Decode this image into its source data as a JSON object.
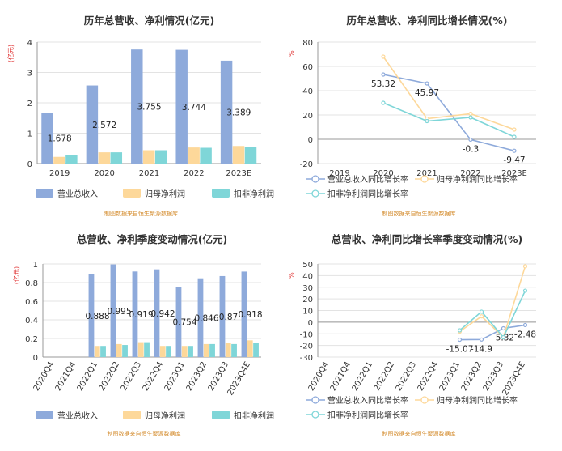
{
  "chart_data": [
    {
      "type": "bar",
      "title": "历年总营收、净利情况(亿元)",
      "unit_label": "(亿元)",
      "categories": [
        "2019",
        "2020",
        "2021",
        "2022",
        "2023E"
      ],
      "ylim": [
        0,
        4
      ],
      "yticks": [
        "0",
        "1",
        "2",
        "3",
        "4"
      ],
      "series": [
        {
          "name": "营业总收入",
          "color": "#8eaadb",
          "values": [
            1.678,
            2.572,
            3.755,
            3.744,
            3.389
          ]
        },
        {
          "name": "归母净利润",
          "color": "#fdd89a",
          "values": [
            0.22,
            0.37,
            0.44,
            0.53,
            0.58
          ]
        },
        {
          "name": "扣非净利润",
          "color": "#7fd6d8",
          "values": [
            0.28,
            0.37,
            0.44,
            0.52,
            0.55
          ]
        }
      ],
      "data_labels": [
        "1.678",
        "2.572",
        "3.755",
        "3.744",
        "3.389"
      ],
      "source": "制图数据来自恒生聚源数据库",
      "grid": true,
      "legend": "bottom"
    },
    {
      "type": "line",
      "title": "历年总营收、净利同比增长情况(%)",
      "unit_label": "%",
      "categories": [
        "2019",
        "2020",
        "2021",
        "2022",
        "2023E"
      ],
      "ylim": [
        -20,
        80
      ],
      "yticks": [
        "-20",
        "0",
        "20",
        "40",
        "60",
        "80"
      ],
      "series": [
        {
          "name": "营业总收入同比增长率",
          "color": "#8eaadb",
          "values": [
            null,
            53.32,
            45.97,
            -0.3,
            -9.47
          ]
        },
        {
          "name": "归母净利润同比增长率",
          "color": "#fdd89a",
          "values": [
            null,
            68.0,
            17.0,
            21.0,
            8.0
          ]
        },
        {
          "name": "扣非净利润同比增长率",
          "color": "#7fd6d8",
          "values": [
            null,
            30.0,
            15.0,
            18.0,
            2.0
          ]
        }
      ],
      "data_labels": [
        "",
        "53.32",
        "45.97",
        "-0.3",
        "-9.47"
      ],
      "source": "制图数据来自恒生聚源数据库",
      "grid": true,
      "legend": "bottom"
    },
    {
      "type": "bar",
      "title": "总营收、净利季度变动情况(亿元)",
      "unit_label": "(亿元)",
      "categories": [
        "2020Q4",
        "2021Q4",
        "2022Q1",
        "2022Q2",
        "2022Q3",
        "2022Q4",
        "2023Q1",
        "2023Q2",
        "2023Q3",
        "2023Q4E"
      ],
      "ylim": [
        0,
        1
      ],
      "yticks": [
        "0",
        "0.2",
        "0.4",
        "0.6",
        "0.8",
        "1"
      ],
      "series": [
        {
          "name": "营业总收入",
          "color": "#8eaadb",
          "values": [
            null,
            null,
            0.888,
            0.995,
            0.919,
            0.942,
            0.754,
            0.846,
            0.87,
            0.918
          ]
        },
        {
          "name": "归母净利润",
          "color": "#fdd89a",
          "values": [
            null,
            null,
            0.12,
            0.14,
            0.16,
            0.12,
            0.12,
            0.14,
            0.15,
            0.18
          ]
        },
        {
          "name": "扣非净利润",
          "color": "#7fd6d8",
          "values": [
            null,
            null,
            0.12,
            0.13,
            0.16,
            0.12,
            0.12,
            0.14,
            0.14,
            0.15
          ]
        }
      ],
      "data_labels": [
        "",
        "",
        "0.888",
        "0.995",
        "0.919",
        "0.942",
        "0.754",
        "0.846",
        "0.87",
        "0.918"
      ],
      "source": "制图数据来自恒生聚源数据库",
      "grid": true,
      "legend": "bottom"
    },
    {
      "type": "line",
      "title": "总营收、净利同比增长率季度变动情况(%)",
      "unit_label": "%",
      "categories": [
        "2020Q4",
        "2021Q4",
        "2022Q1",
        "2022Q2",
        "2022Q3",
        "2022Q4",
        "2023Q1",
        "2023Q2",
        "2023Q3",
        "2023Q4E"
      ],
      "ylim": [
        -30,
        50
      ],
      "yticks": [
        "-30",
        "-20",
        "-10",
        "0",
        "10",
        "20",
        "30",
        "40",
        "50"
      ],
      "series": [
        {
          "name": "营业总收入同比增长率",
          "color": "#8eaadb",
          "values": [
            null,
            null,
            null,
            null,
            null,
            null,
            -15.07,
            -14.9,
            -5.32,
            -2.48
          ]
        },
        {
          "name": "归母净利润同比增长率",
          "color": "#fdd89a",
          "values": [
            null,
            null,
            null,
            null,
            null,
            null,
            -8.0,
            5.0,
            -13.0,
            48.0
          ]
        },
        {
          "name": "扣非净利润同比增长率",
          "color": "#7fd6d8",
          "values": [
            null,
            null,
            null,
            null,
            null,
            null,
            -7.0,
            9.0,
            -13.0,
            27.0
          ]
        }
      ],
      "data_labels": [
        "",
        "",
        "",
        "",
        "",
        "",
        "-15.07",
        "-14.9",
        "-5.32",
        "-2.48"
      ],
      "source": "制图数据来自恒生聚源数据库",
      "grid": true,
      "legend": "bottom"
    }
  ]
}
